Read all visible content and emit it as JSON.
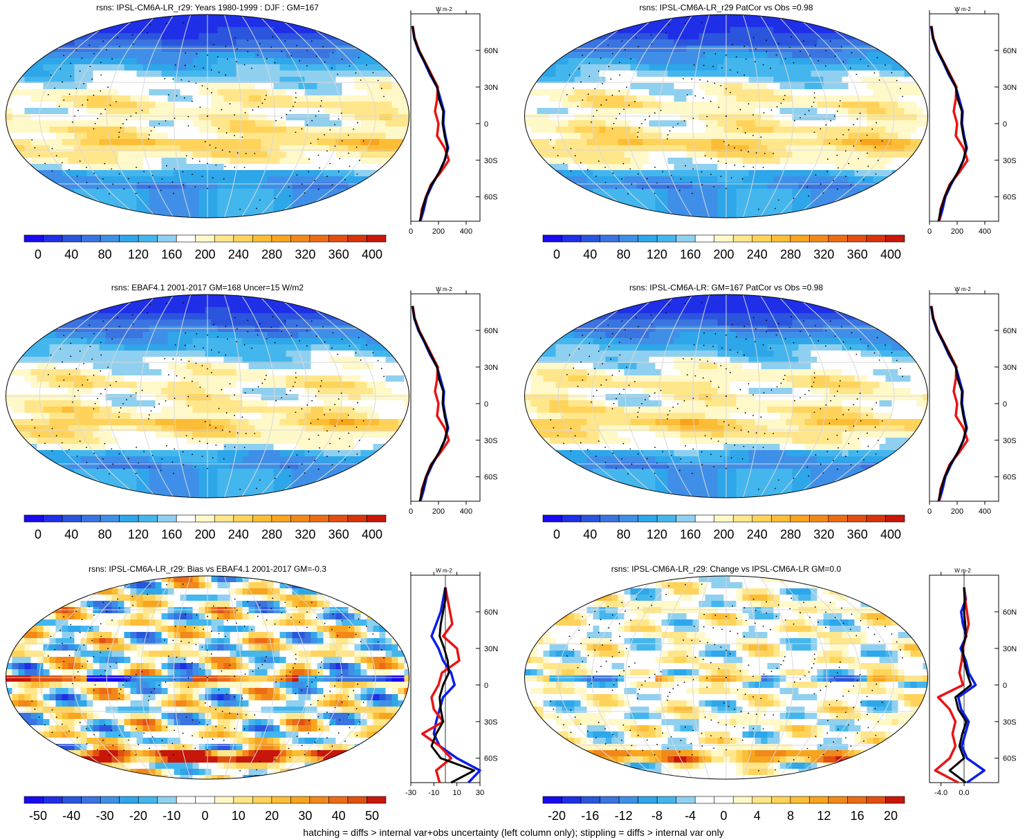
{
  "footer": "hatching = diffs > internal var+obs uncertainty (left column only); stippling = diffs > internal var only",
  "colors": {
    "abs_scale": [
      "#1a0af0",
      "#1f2fe8",
      "#2a55dc",
      "#3a74e0",
      "#3f8fe8",
      "#2ea6ea",
      "#44b6ee",
      "#8fd0f0",
      "#ffffff",
      "#fff8c8",
      "#ffe68a",
      "#ffd35a",
      "#fcbd36",
      "#f8a41e",
      "#f2881a",
      "#ec6c15",
      "#e24f10",
      "#d8340c",
      "#c8160a"
    ],
    "div_scale": [
      "#1a0af0",
      "#1f2fe8",
      "#2a55dc",
      "#3a74e0",
      "#3f8fe8",
      "#2ea6ea",
      "#44b6ee",
      "#8fd0f0",
      "#ffffff",
      "#ffffff",
      "#fff8c8",
      "#ffe68a",
      "#ffd35a",
      "#fcbd36",
      "#f8a41e",
      "#f2881a",
      "#ec6c15",
      "#e24f10",
      "#c8160a"
    ],
    "model_line": "#0a1ee6",
    "obs_line": "#e81414",
    "ens_line": "#000000"
  },
  "chart_data": [
    {
      "id": "model_mean",
      "type": "heatmap",
      "projection": "robinson",
      "title": "rsns: IPSL-CM6A-LR_r29: Years 1980-1999 : DJF : GM=167",
      "colorbar": {
        "scale": "abs",
        "ticks": [
          "0",
          "40",
          "80",
          "120",
          "160",
          "200",
          "240",
          "280",
          "320",
          "360",
          "400"
        ]
      },
      "zonal_mean": {
        "units": "W m-2",
        "xlim": [
          0,
          500
        ],
        "xticks": [
          "0",
          "200",
          "400"
        ],
        "lat_ticks": [
          "60N",
          "30N",
          "0",
          "30S",
          "60S"
        ],
        "series": [
          {
            "name": "model",
            "lat": [
              80,
              70,
              60,
              50,
              40,
              30,
              20,
              10,
              0,
              -10,
              -20,
              -30,
              -40,
              -50,
              -60,
              -70,
              -80
            ],
            "values": [
              12,
              25,
              55,
              100,
              140,
              190,
              215,
              240,
              235,
              250,
              270,
              245,
              205,
              155,
              115,
              95,
              70
            ]
          },
          {
            "name": "obs",
            "lat": [
              80,
              70,
              60,
              50,
              40,
              30,
              20,
              10,
              0,
              -10,
              -20,
              -30,
              -40,
              -50,
              -60,
              -70,
              -80
            ],
            "values": [
              14,
              28,
              60,
              105,
              150,
              195,
              190,
              175,
              200,
              190,
              245,
              275,
              215,
              145,
              110,
              80,
              70
            ]
          },
          {
            "name": "ensemble",
            "lat": [
              80,
              70,
              60,
              50,
              40,
              30,
              20,
              10,
              0,
              -10,
              -20,
              -30,
              -40,
              -50,
              -60,
              -70,
              -80
            ],
            "values": [
              13,
              26,
              58,
              103,
              145,
              190,
              205,
              235,
              230,
              245,
              265,
              245,
              205,
              150,
              110,
              85,
              65
            ]
          }
        ]
      }
    },
    {
      "id": "patcor_top",
      "type": "heatmap",
      "projection": "robinson",
      "title": "rsns: IPSL-CM6A-LR_r29 PatCor vs Obs =0.98",
      "colorbar": {
        "scale": "abs",
        "ticks": [
          "0",
          "40",
          "80",
          "120",
          "160",
          "200",
          "240",
          "280",
          "320",
          "360",
          "400"
        ]
      },
      "zonal_mean": {
        "units": "W m-2",
        "xlim": [
          0,
          500
        ],
        "xticks": [
          "0",
          "200",
          "400"
        ],
        "lat_ticks": [
          "60N",
          "30N",
          "0",
          "30S",
          "60S"
        ],
        "series": [
          {
            "name": "model",
            "lat": [
              80,
              70,
              60,
              50,
              40,
              30,
              20,
              10,
              0,
              -10,
              -20,
              -30,
              -40,
              -50,
              -60,
              -70,
              -80
            ],
            "values": [
              12,
              25,
              55,
              100,
              140,
              190,
              215,
              240,
              235,
              250,
              270,
              245,
              205,
              155,
              115,
              95,
              70
            ]
          },
          {
            "name": "obs",
            "lat": [
              80,
              70,
              60,
              50,
              40,
              30,
              20,
              10,
              0,
              -10,
              -20,
              -30,
              -40,
              -50,
              -60,
              -70,
              -80
            ],
            "values": [
              14,
              28,
              60,
              105,
              150,
              195,
              190,
              175,
              200,
              190,
              245,
              275,
              215,
              145,
              110,
              80,
              70
            ]
          },
          {
            "name": "ensemble",
            "lat": [
              80,
              70,
              60,
              50,
              40,
              30,
              20,
              10,
              0,
              -10,
              -20,
              -30,
              -40,
              -50,
              -60,
              -70,
              -80
            ],
            "values": [
              13,
              26,
              58,
              103,
              145,
              190,
              205,
              235,
              230,
              245,
              265,
              245,
              205,
              150,
              110,
              85,
              65
            ]
          }
        ]
      }
    },
    {
      "id": "obs_mean",
      "type": "heatmap",
      "projection": "robinson",
      "title": "rsns: EBAF4.1 2001-2017 GM=168 Uncer=15 W/m2",
      "colorbar": {
        "scale": "abs",
        "ticks": [
          "0",
          "40",
          "80",
          "120",
          "160",
          "200",
          "240",
          "280",
          "320",
          "360",
          "400"
        ]
      },
      "zonal_mean": {
        "units": "W m-2",
        "xlim": [
          0,
          500
        ],
        "xticks": [
          "0",
          "200",
          "400"
        ],
        "lat_ticks": [
          "60N",
          "30N",
          "0",
          "30S",
          "60S"
        ],
        "series": [
          {
            "name": "model",
            "lat": [
              80,
              70,
              60,
              50,
              40,
              30,
              20,
              10,
              0,
              -10,
              -20,
              -30,
              -40,
              -50,
              -60,
              -70,
              -80
            ],
            "values": [
              12,
              25,
              55,
              100,
              140,
              190,
              215,
              240,
              235,
              250,
              270,
              245,
              205,
              155,
              115,
              95,
              70
            ]
          },
          {
            "name": "obs",
            "lat": [
              80,
              70,
              60,
              50,
              40,
              30,
              20,
              10,
              0,
              -10,
              -20,
              -30,
              -40,
              -50,
              -60,
              -70,
              -80
            ],
            "values": [
              14,
              28,
              60,
              105,
              150,
              195,
              190,
              175,
              200,
              190,
              245,
              275,
              215,
              145,
              110,
              80,
              70
            ]
          },
          {
            "name": "ensemble",
            "lat": [
              80,
              70,
              60,
              50,
              40,
              30,
              20,
              10,
              0,
              -10,
              -20,
              -30,
              -40,
              -50,
              -60,
              -70,
              -80
            ],
            "values": [
              13,
              26,
              58,
              103,
              145,
              190,
              205,
              235,
              230,
              245,
              265,
              245,
              205,
              150,
              110,
              85,
              65
            ]
          }
        ]
      }
    },
    {
      "id": "ens_mean",
      "type": "heatmap",
      "projection": "robinson",
      "title": "rsns: IPSL-CM6A-LR: GM=167 PatCor vs Obs =0.98",
      "colorbar": {
        "scale": "abs",
        "ticks": [
          "0",
          "40",
          "80",
          "120",
          "160",
          "200",
          "240",
          "280",
          "320",
          "360",
          "400"
        ]
      },
      "zonal_mean": {
        "units": "W m-2",
        "xlim": [
          0,
          500
        ],
        "xticks": [
          "0",
          "200",
          "400"
        ],
        "lat_ticks": [
          "60N",
          "30N",
          "0",
          "30S",
          "60S"
        ],
        "series": [
          {
            "name": "model",
            "lat": [
              80,
              70,
              60,
              50,
              40,
              30,
              20,
              10,
              0,
              -10,
              -20,
              -30,
              -40,
              -50,
              -60,
              -70,
              -80
            ],
            "values": [
              12,
              25,
              55,
              100,
              140,
              190,
              215,
              240,
              235,
              250,
              270,
              245,
              205,
              155,
              115,
              95,
              70
            ]
          },
          {
            "name": "obs",
            "lat": [
              80,
              70,
              60,
              50,
              40,
              30,
              20,
              10,
              0,
              -10,
              -20,
              -30,
              -40,
              -50,
              -60,
              -70,
              -80
            ],
            "values": [
              14,
              28,
              60,
              105,
              150,
              195,
              190,
              175,
              200,
              190,
              245,
              275,
              215,
              145,
              110,
              80,
              70
            ]
          },
          {
            "name": "ensemble",
            "lat": [
              80,
              70,
              60,
              50,
              40,
              30,
              20,
              10,
              0,
              -10,
              -20,
              -30,
              -40,
              -50,
              -60,
              -70,
              -80
            ],
            "values": [
              13,
              26,
              58,
              103,
              145,
              190,
              205,
              235,
              230,
              245,
              265,
              245,
              205,
              150,
              110,
              85,
              65
            ]
          }
        ]
      }
    },
    {
      "id": "bias",
      "type": "heatmap",
      "projection": "robinson",
      "title": "rsns: IPSL-CM6A-LR_r29: Bias vs EBAF4.1 2001-2017 GM=-0.3",
      "colorbar": {
        "scale": "div",
        "ticks": [
          "-50",
          "-40",
          "-30",
          "-20",
          "-10",
          "0",
          "10",
          "20",
          "30",
          "40",
          "50"
        ]
      },
      "zonal_mean": {
        "units": "W m-2",
        "xlim": [
          -30,
          30
        ],
        "xticks": [
          "-30",
          "-10",
          "10",
          "30"
        ],
        "lat_ticks": [
          "60N",
          "30N",
          "0",
          "30S",
          "60S"
        ],
        "series": [
          {
            "name": "model",
            "lat": [
              80,
              70,
              60,
              50,
              40,
              30,
              20,
              10,
              0,
              -10,
              -20,
              -30,
              -40,
              -50,
              -60,
              -70,
              -80
            ],
            "values": [
              0,
              -2,
              -4,
              -8,
              -12,
              -6,
              -2,
              5,
              8,
              -2,
              -5,
              -8,
              -10,
              -5,
              10,
              30,
              20
            ]
          },
          {
            "name": "obs",
            "lat": [
              80,
              70,
              60,
              50,
              40,
              30,
              20,
              10,
              0,
              -10,
              -20,
              -30,
              -40,
              -50,
              -60,
              -70,
              -80
            ],
            "values": [
              0,
              2,
              4,
              6,
              -2,
              10,
              12,
              -3,
              -6,
              -12,
              -10,
              -2,
              -20,
              -5,
              5,
              -8,
              -5
            ]
          },
          {
            "name": "ensemble",
            "lat": [
              80,
              70,
              60,
              50,
              40,
              30,
              20,
              10,
              0,
              -10,
              -20,
              -30,
              -40,
              -50,
              -60,
              -70,
              -80
            ],
            "values": [
              0,
              0,
              -2,
              -4,
              -5,
              -1,
              2,
              3,
              -2,
              -5,
              -4,
              -2,
              -8,
              -12,
              -4,
              25,
              5
            ]
          }
        ]
      }
    },
    {
      "id": "change",
      "type": "heatmap",
      "projection": "robinson",
      "title": "rsns: IPSL-CM6A-LR_r29: Change vs IPSL-CM6A-LR GM=0.0",
      "colorbar": {
        "scale": "div",
        "ticks": [
          "-20",
          "-16",
          "-12",
          "-8",
          "-4",
          "0",
          "4",
          "8",
          "12",
          "16",
          "20"
        ]
      },
      "zonal_mean": {
        "units": "W m-2",
        "xlim": [
          -6,
          6
        ],
        "xticks": [
          "-4.0",
          "0.0"
        ],
        "lat_ticks": [
          "60N",
          "30N",
          "0",
          "30S",
          "60S"
        ],
        "series": [
          {
            "name": "model",
            "lat": [
              80,
              70,
              60,
              50,
              40,
              30,
              20,
              10,
              0,
              -10,
              -20,
              -30,
              -40,
              -50,
              -60,
              -70,
              -80
            ],
            "values": [
              0,
              0.3,
              -0.5,
              -0.2,
              0.4,
              -0.6,
              0.3,
              0.8,
              2.0,
              -1.0,
              -0.5,
              0.8,
              0.2,
              -0.4,
              0.5,
              3.5,
              0.5
            ]
          },
          {
            "name": "obs",
            "lat": [
              80,
              70,
              60,
              50,
              40,
              30,
              20,
              10,
              0,
              -10,
              -20,
              -30,
              -40,
              -50,
              -60,
              -70,
              -80
            ],
            "values": [
              0,
              0.2,
              0.5,
              0.8,
              0.3,
              -0.2,
              -0.4,
              -0.8,
              -0.2,
              -4.5,
              -2.5,
              -1.5,
              -2.0,
              -1.5,
              -2.5,
              -5.0,
              -1.0
            ]
          },
          {
            "name": "ensemble",
            "lat": [
              80,
              70,
              60,
              50,
              40,
              30,
              20,
              10,
              0,
              -10,
              -20,
              -30,
              -40,
              -50,
              -60,
              -70,
              -80
            ],
            "values": [
              0,
              0.1,
              0.0,
              0.2,
              0.3,
              -0.3,
              0.0,
              0.5,
              1.2,
              -1.5,
              -1.0,
              0.4,
              -0.3,
              -0.8,
              0.0,
              -2.5,
              0.3
            ]
          }
        ]
      }
    }
  ]
}
